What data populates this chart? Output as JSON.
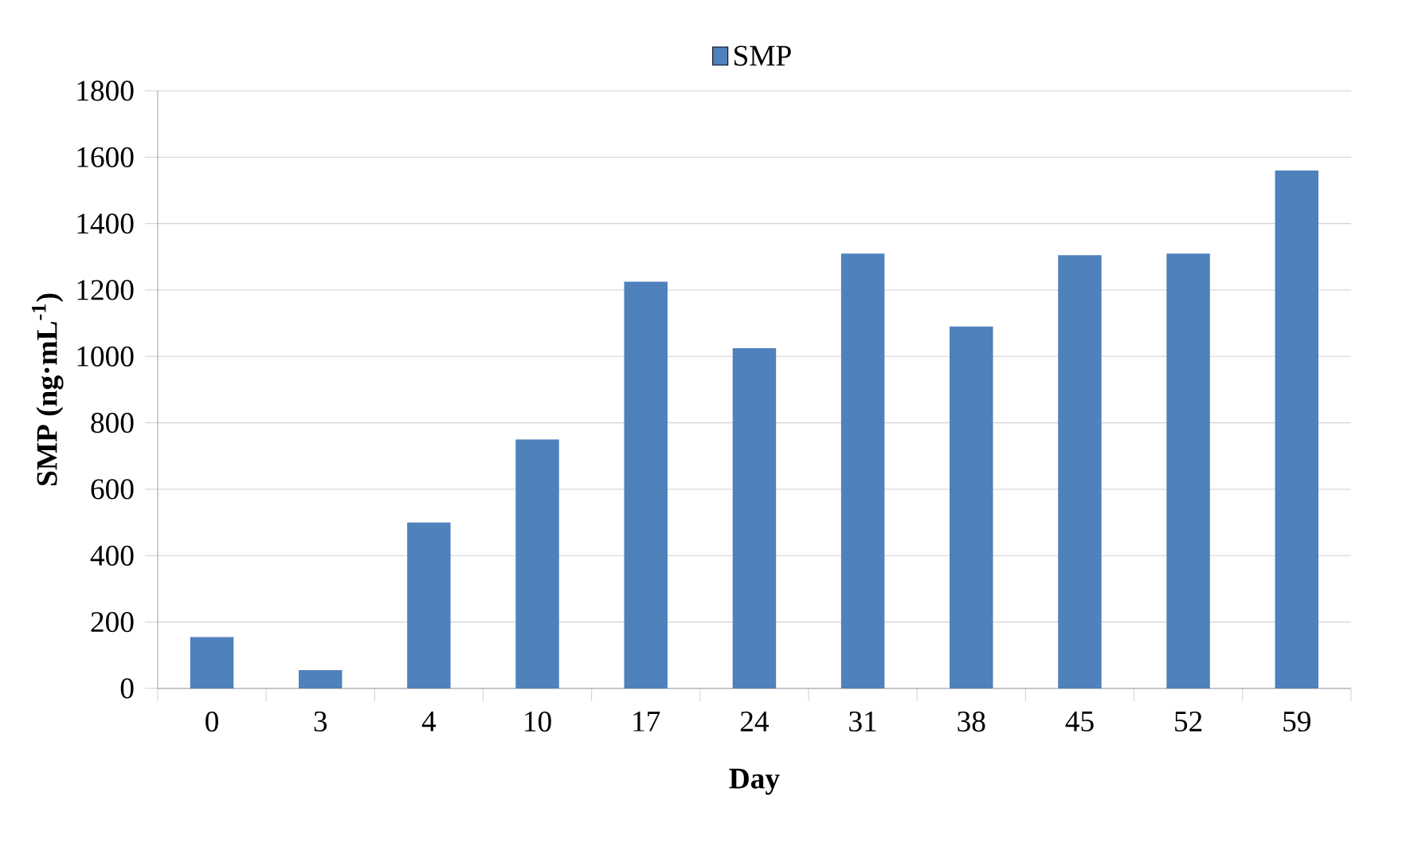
{
  "chart_data": {
    "type": "bar",
    "xlabel": "Day",
    "ylabel": "SMP (ng·mL$^{-1}$)",
    "categories": [
      "0",
      "3",
      "4",
      "10",
      "17",
      "24",
      "31",
      "38",
      "45",
      "52",
      "59"
    ],
    "series": [
      {
        "name": "SMP",
        "color": "#4f81bd",
        "values": [
          155,
          55,
          500,
          750,
          1225,
          1025,
          1310,
          1090,
          1305,
          1310,
          1560
        ]
      }
    ],
    "ylim": [
      0,
      1800
    ],
    "yticks": [
      0,
      200,
      400,
      600,
      800,
      1000,
      1200,
      1400,
      1600,
      1800
    ],
    "grid": "y",
    "legend": "top"
  }
}
